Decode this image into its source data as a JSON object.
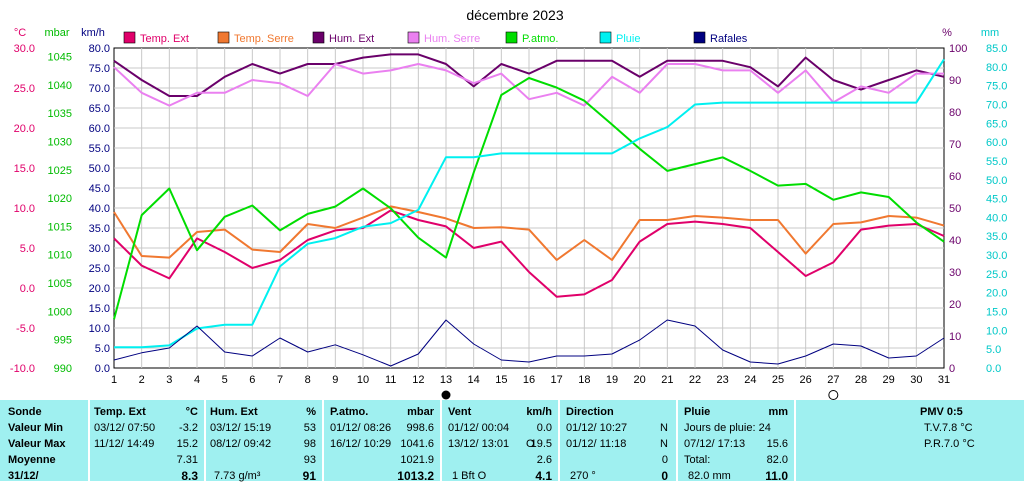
{
  "chart_data": {
    "type": "line",
    "title": "décembre 2023",
    "x": [
      1,
      2,
      3,
      4,
      5,
      6,
      7,
      8,
      9,
      10,
      11,
      12,
      13,
      14,
      15,
      16,
      17,
      18,
      19,
      20,
      21,
      22,
      23,
      24,
      25,
      26,
      27,
      28,
      29,
      30,
      31
    ],
    "axes": {
      "temp": {
        "unit": "°C",
        "ticks": [
          "-10.0",
          "-5.0",
          "0.0",
          "5.0",
          "10.0",
          "15.0",
          "20.0",
          "25.0",
          "30.0"
        ],
        "min": -10,
        "max": 30
      },
      "pressure": {
        "unit": "mbar",
        "ticks": [
          "990",
          "995",
          "1000",
          "1005",
          "1010",
          "1015",
          "1020",
          "1025",
          "1030",
          "1035",
          "1040",
          "1045"
        ],
        "min": 990,
        "max": 1046.5
      },
      "wind": {
        "unit": "km/h",
        "ticks": [
          "0.0",
          "5.0",
          "10.0",
          "15.0",
          "20.0",
          "25.0",
          "30.0",
          "35.0",
          "40.0",
          "45.0",
          "50.0",
          "55.0",
          "60.0",
          "65.0",
          "70.0",
          "75.0",
          "80.0"
        ],
        "min": 0,
        "max": 80
      },
      "humidity": {
        "unit": "%",
        "ticks": [
          "0",
          "10",
          "20",
          "30",
          "40",
          "50",
          "60",
          "70",
          "80",
          "90",
          "100"
        ],
        "min": 0,
        "max": 100
      },
      "rain": {
        "unit": "mm",
        "ticks": [
          "0.0",
          "5.0",
          "10.0",
          "15.0",
          "20.0",
          "25.0",
          "30.0",
          "35.0",
          "40.0",
          "45.0",
          "50.0",
          "55.0",
          "60.0",
          "65.0",
          "70.0",
          "75.0",
          "80.0",
          "85.0"
        ],
        "min": 0,
        "max": 85
      }
    },
    "moon": {
      "new_moon_day": 13,
      "full_moon_day": 27
    },
    "series": [
      {
        "name": "Temp. Ext",
        "color": "#e0006a",
        "axis": "temp",
        "values": [
          6.2,
          2.8,
          1.2,
          6.2,
          4.5,
          2.5,
          3.5,
          6.0,
          7.2,
          7.5,
          9.7,
          8.5,
          7.7,
          5.0,
          5.8,
          2.0,
          -1.1,
          -0.8,
          1.0,
          5.8,
          8.0,
          8.3,
          8.0,
          7.5,
          4.5,
          1.5,
          3.2,
          7.3,
          7.8,
          8.0,
          6.5
        ]
      },
      {
        "name": "Temp. Serre",
        "color": "#f07830",
        "axis": "temp",
        "values": [
          9.5,
          4.0,
          3.8,
          7.0,
          7.3,
          4.8,
          4.5,
          8.0,
          7.5,
          8.8,
          10.2,
          9.5,
          8.7,
          7.5,
          7.6,
          7.3,
          3.5,
          6.0,
          3.5,
          8.5,
          8.5,
          9.0,
          8.8,
          8.5,
          8.5,
          4.3,
          8.0,
          8.2,
          9.0,
          8.8,
          7.8
        ]
      },
      {
        "name": "Hum. Ext",
        "color": "#6a006a",
        "axis": "humidity",
        "values": [
          96,
          90,
          85,
          85,
          91,
          95,
          92,
          95,
          95,
          97,
          98,
          98,
          95,
          88,
          95,
          92,
          96,
          96,
          96,
          91,
          96,
          96,
          96,
          94,
          88,
          97,
          90,
          87,
          90,
          93,
          91
        ]
      },
      {
        "name": "Hum. Serre",
        "color": "#ea80f0",
        "axis": "humidity",
        "values": [
          94,
          86,
          82,
          86,
          86,
          90,
          89,
          85,
          95,
          92,
          93,
          95,
          93,
          89,
          92,
          84,
          86,
          82,
          91,
          86,
          95,
          95,
          93,
          93,
          86,
          93,
          83,
          88,
          86,
          92,
          92
        ]
      },
      {
        "name": "P.atmo.",
        "color": "#00dd00",
        "axis": "pressure",
        "values": [
          998.6,
          1017,
          1021.7,
          1010.8,
          1016.7,
          1018.7,
          1014.3,
          1017.2,
          1018.5,
          1021.7,
          1018.2,
          1013,
          1009.5,
          1024.5,
          1038.2,
          1041.2,
          1039.5,
          1037.2,
          1033,
          1028.7,
          1024.8,
          1026,
          1027.2,
          1024.8,
          1022.2,
          1022.5,
          1019.7,
          1021,
          1020.2,
          1015.7,
          1012.3
        ]
      },
      {
        "name": "Pluie",
        "color": "#00f0f0",
        "axis": "rain",
        "values": [
          5.5,
          5.5,
          6.0,
          10.5,
          11.5,
          11.5,
          27,
          33,
          34.5,
          37.5,
          38.5,
          42,
          56,
          56,
          57,
          57,
          57,
          57,
          57,
          61,
          64,
          70,
          70.5,
          70.5,
          70.5,
          70.5,
          70.5,
          70.5,
          70.5,
          70.5,
          82.0
        ]
      },
      {
        "name": "Rafales",
        "color": "#000080",
        "axis": "wind",
        "values": [
          2.0,
          3.8,
          5.0,
          10.5,
          4.0,
          3.0,
          7.5,
          4.0,
          5.8,
          3.3,
          0.5,
          3.5,
          12.0,
          6.0,
          2.0,
          1.5,
          3.0,
          3.0,
          3.5,
          7.0,
          12.0,
          10.5,
          4.5,
          1.5,
          1.0,
          3.0,
          6.0,
          5.5,
          2.5,
          3.0,
          7.5
        ]
      }
    ]
  },
  "stats": {
    "labels": {
      "title": "Sonde",
      "min": "Valeur Min",
      "max": "Valeur Max",
      "avg": "Moyenne",
      "last": "31/12/"
    },
    "temp": {
      "header": "Temp. Ext",
      "unit": "°C",
      "min_date": "03/12/  07:50",
      "min": "-3.2",
      "max_date": "11/12/  14:49",
      "max": "15.2",
      "avg": "7.31",
      "last": "8.3"
    },
    "hum": {
      "header": "Hum. Ext",
      "unit": "%",
      "min_date": "03/12/  15:19",
      "min": "53",
      "max_date": "08/12/  09:42",
      "max": "98",
      "avg": "93",
      "last_sub": "7.73 g/m³",
      "last": "91"
    },
    "patmo": {
      "header": "P.atmo.",
      "unit": "mbar",
      "min_date": "01/12/  08:26",
      "min": "998.6",
      "max_date": "16/12/  10:29",
      "max": "1041.6",
      "avg": "1021.9",
      "last": "1013.2"
    },
    "vent": {
      "header": "Vent",
      "unit": "km/h",
      "min_date": "01/12/  00:04",
      "min": "0.0",
      "max_date": "13/12/  13:01",
      "max_dir": "O",
      "max": "19.5",
      "avg": "2.6",
      "last_sub": "1 Bft O",
      "last": "4.1"
    },
    "dir": {
      "header": "Direction",
      "min_date": "01/12/  10:27",
      "min": "N",
      "max_date": "01/12/  11:18",
      "max": "N",
      "avg": "0",
      "last_sub": "270 °",
      "last": "0"
    },
    "pluie": {
      "header": "Pluie",
      "unit": "mm",
      "days_label": "Jours de pluie: 24",
      "max_date": "07/12/  17:13",
      "max": "15.6",
      "total_label": "Total:",
      "total": "82.0",
      "last_sub": "82.0 mm",
      "last": "11.0"
    },
    "pmv": {
      "header": "PMV 0:5",
      "tv": "T.V.7.8 °C",
      "pr": "P.R.7.0 °C"
    }
  }
}
